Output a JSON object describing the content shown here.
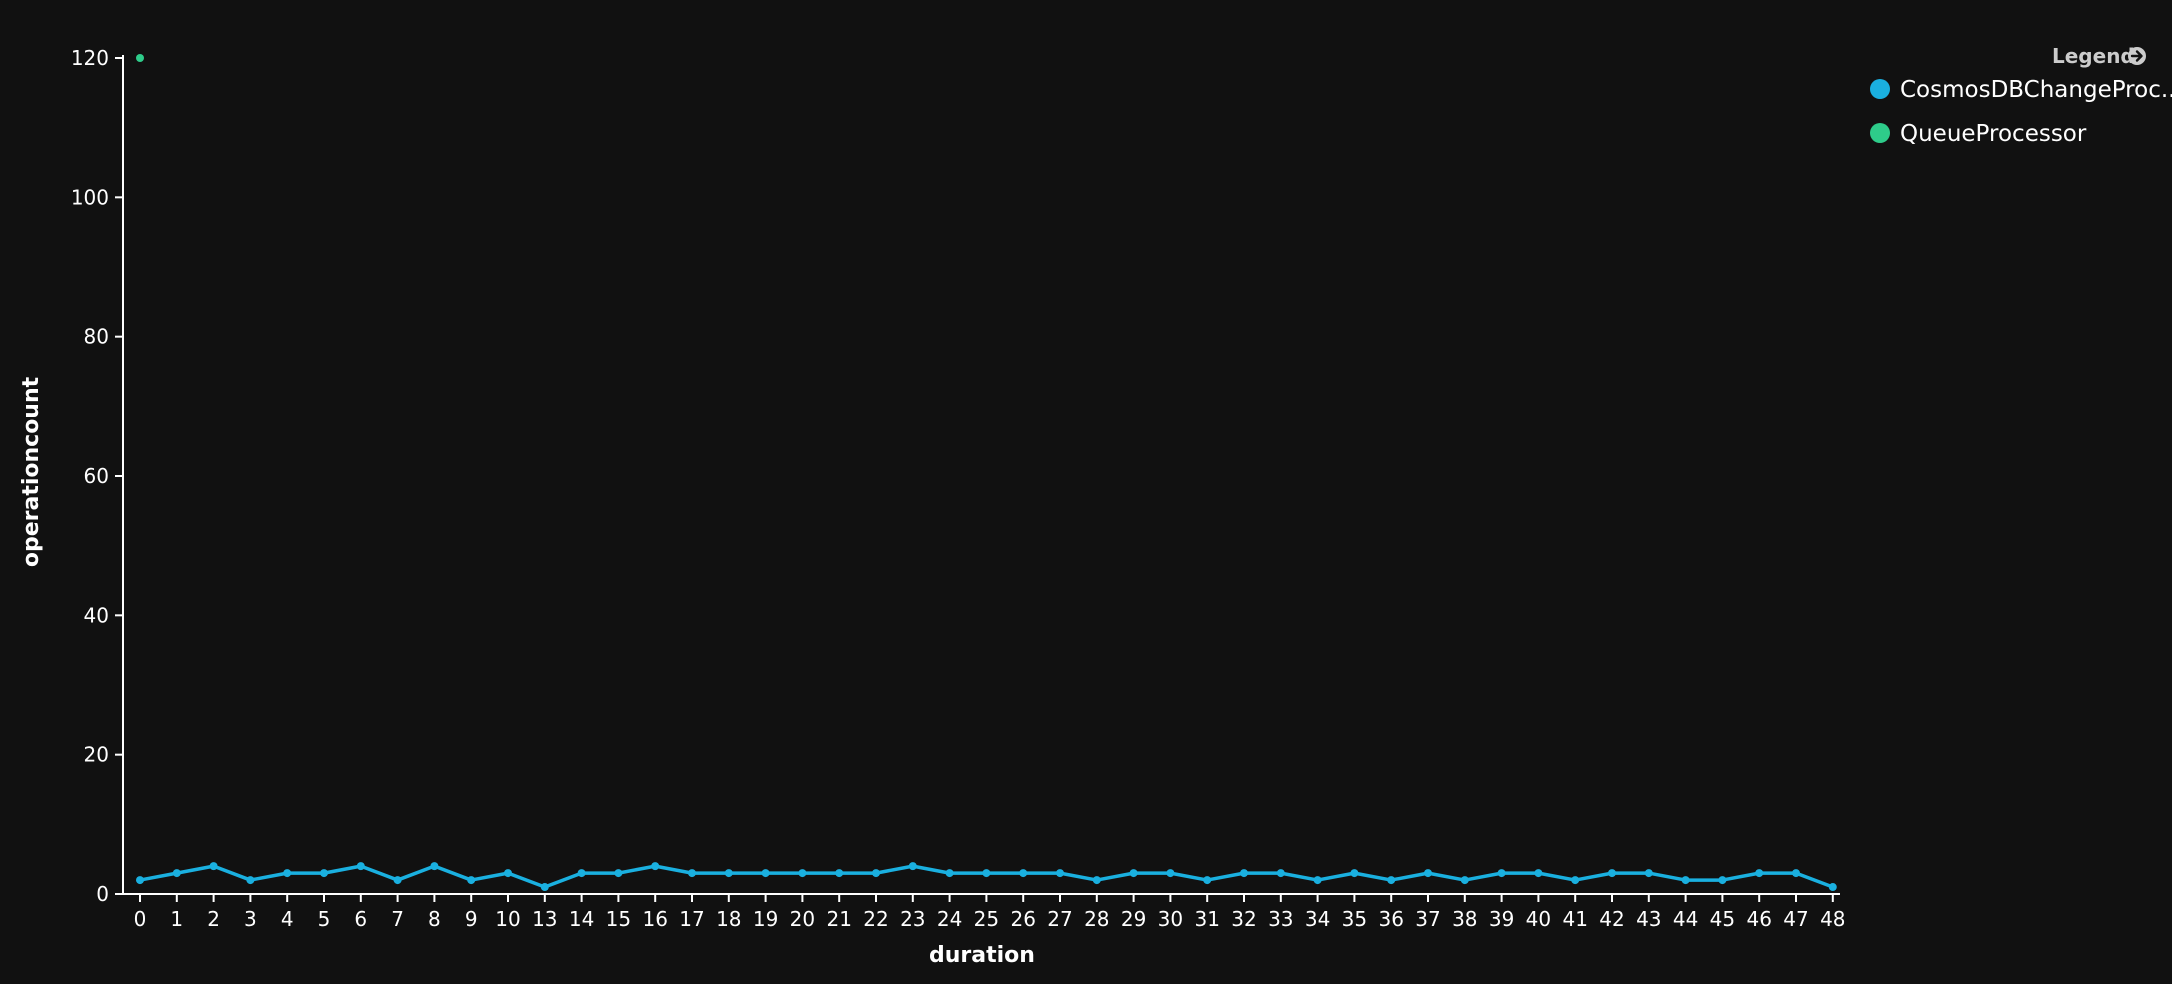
{
  "chart_data": {
    "type": "line",
    "xlabel": "duration",
    "ylabel": "operationcount",
    "ylim": [
      0,
      120
    ],
    "yticks": [
      0,
      20,
      40,
      60,
      80,
      100,
      120
    ],
    "categories": [
      "0",
      "1",
      "2",
      "3",
      "4",
      "5",
      "6",
      "7",
      "8",
      "9",
      "10",
      "13",
      "14",
      "15",
      "16",
      "17",
      "18",
      "19",
      "20",
      "21",
      "22",
      "23",
      "24",
      "25",
      "26",
      "27",
      "28",
      "29",
      "30",
      "31",
      "32",
      "33",
      "34",
      "35",
      "36",
      "37",
      "38",
      "39",
      "40",
      "41",
      "42",
      "43",
      "44",
      "45",
      "46",
      "47",
      "48"
    ],
    "grid": false,
    "legend": {
      "title": "Legend",
      "placement": "top-right"
    },
    "series": [
      {
        "name": "CosmosDBChangeProc...",
        "color": "#1ab0e0",
        "values": [
          2,
          3,
          4,
          2,
          3,
          3,
          4,
          2,
          4,
          2,
          3,
          1,
          3,
          3,
          4,
          3,
          3,
          3,
          3,
          3,
          3,
          4,
          3,
          3,
          3,
          3,
          2,
          3,
          3,
          2,
          3,
          3,
          2,
          3,
          2,
          3,
          2,
          3,
          3,
          2,
          3,
          3,
          2,
          2,
          3,
          3,
          1
        ]
      },
      {
        "name": "QueueProcessor",
        "color": "#2ecc8a",
        "values": [
          120,
          null,
          null,
          null,
          null,
          null,
          null,
          null,
          null,
          null,
          null,
          null,
          null,
          null,
          null,
          null,
          null,
          null,
          null,
          null,
          null,
          null,
          null,
          null,
          null,
          null,
          null,
          null,
          null,
          null,
          null,
          null,
          null,
          null,
          null,
          null,
          null,
          null,
          null,
          null,
          null,
          null,
          null,
          null,
          null,
          null,
          null
        ]
      }
    ]
  }
}
